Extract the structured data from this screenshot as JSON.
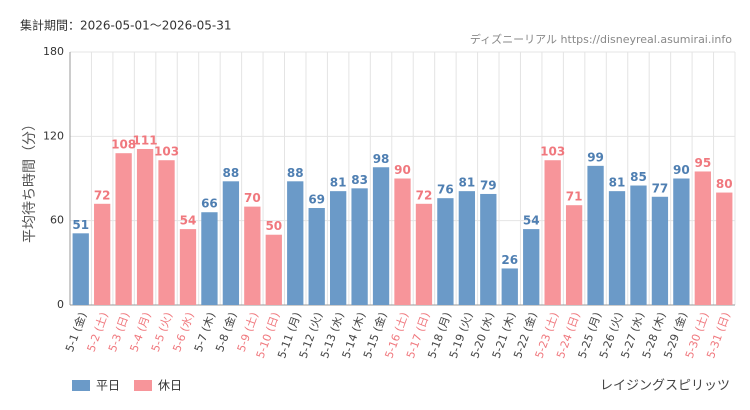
{
  "chart_data": {
    "type": "bar",
    "subtitle": "集計期間：2026-05-01〜2026-05-31",
    "source": "ディズニーリアル https://disneyreal.asumirai.info",
    "y_label": "平均待ち時間（分）",
    "title": "レイジングスピリッツ",
    "categories": [
      "5-1 (金)",
      "5-2 (土)",
      "5-3 (日)",
      "5-4 (月)",
      "5-5 (火)",
      "5-6 (水)",
      "5-7 (木)",
      "5-8 (金)",
      "5-9 (土)",
      "5-10 (日)",
      "5-11 (月)",
      "5-12 (火)",
      "5-13 (水)",
      "5-14 (木)",
      "5-15 (金)",
      "5-16 (土)",
      "5-17 (日)",
      "5-18 (月)",
      "5-19 (火)",
      "5-20 (水)",
      "5-21 (木)",
      "5-22 (金)",
      "5-23 (土)",
      "5-24 (日)",
      "5-25 (月)",
      "5-26 (火)",
      "5-27 (水)",
      "5-28 (木)",
      "5-29 (金)",
      "5-30 (土)",
      "5-31 (日)"
    ],
    "series": [
      {
        "name": "平日",
        "color": "#6b9ac8",
        "values": [
          51,
          null,
          null,
          null,
          null,
          null,
          66,
          88,
          null,
          null,
          88,
          69,
          81,
          83,
          98,
          null,
          null,
          76,
          81,
          79,
          26,
          54,
          null,
          null,
          99,
          81,
          85,
          77,
          90,
          null,
          null
        ]
      },
      {
        "name": "休日",
        "color": "#f7959a",
        "values": [
          null,
          72,
          108,
          111,
          103,
          54,
          null,
          null,
          70,
          50,
          null,
          null,
          null,
          null,
          null,
          90,
          72,
          null,
          null,
          null,
          null,
          null,
          103,
          71,
          null,
          null,
          null,
          null,
          null,
          95,
          80
        ]
      }
    ],
    "ylim": [
      0,
      180
    ],
    "yticks": [
      0,
      60,
      120,
      180
    ],
    "grid": true
  }
}
